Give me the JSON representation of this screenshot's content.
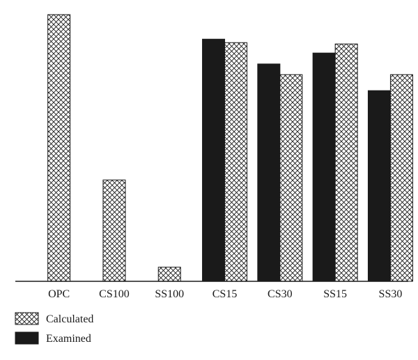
{
  "chart_data": {
    "type": "bar",
    "categories": [
      "OPC",
      "CS100",
      "SS100",
      "CS15",
      "CS30",
      "SS15",
      "SS30"
    ],
    "series": [
      {
        "name": "Calculated",
        "pattern": "crosshatch",
        "color": "#1a1a1a",
        "values": [
          100,
          38,
          5.3,
          89.5,
          77.5,
          89,
          77.5
        ]
      },
      {
        "name": "Examined",
        "pattern": "solid",
        "color": "#1a1a1a",
        "values": [
          null,
          null,
          null,
          90.8,
          81.5,
          85.6,
          71.5
        ]
      }
    ],
    "ylim": [
      0,
      100
    ],
    "y_axis_visible": false,
    "grid": false,
    "legend": "bottom-left",
    "title": "",
    "xlabel": "",
    "ylabel": ""
  }
}
